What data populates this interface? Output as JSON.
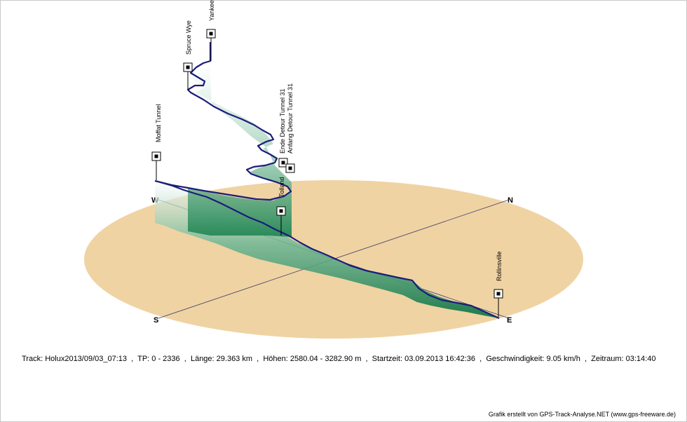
{
  "chart_data": {
    "type": "line",
    "style": "3d-track-elevation-profile",
    "compass": [
      "N",
      "E",
      "S",
      "W"
    ],
    "waypoints": [
      {
        "name": "Moffat Tunnel"
      },
      {
        "name": "Spruce Wye"
      },
      {
        "name": "Yankee"
      },
      {
        "name": "Ende Detour Tunnel 31"
      },
      {
        "name": "Anfang Detour Tunnel 31"
      },
      {
        "name": "Tolland"
      },
      {
        "name": "Rollinsville"
      }
    ],
    "colors": {
      "ground": "#f0d3a3",
      "track": "#1c1c7a",
      "curtain_dark": "#1e7a4a",
      "curtain_light": "#ffffff",
      "axis": "#3a3a6a"
    }
  },
  "info": {
    "track": "Track: Holux2013/09/03_07:13",
    "tp": "TP: 0 - 2336",
    "laenge": "Länge: 29.363 km",
    "hoehen": "Höhen: 2580.04 - 3282.90 m",
    "startzeit": "Startzeit: 03.09.2013 16:42:36",
    "geschwindigkeit": "Geschwindigkeit: 9.05 km/h",
    "zeitraum": "Zeitraum: 03:14:40"
  },
  "credit": "Grafik erstellt von GPS-Track-Analyse.NET (www.gps-freeware.de)"
}
